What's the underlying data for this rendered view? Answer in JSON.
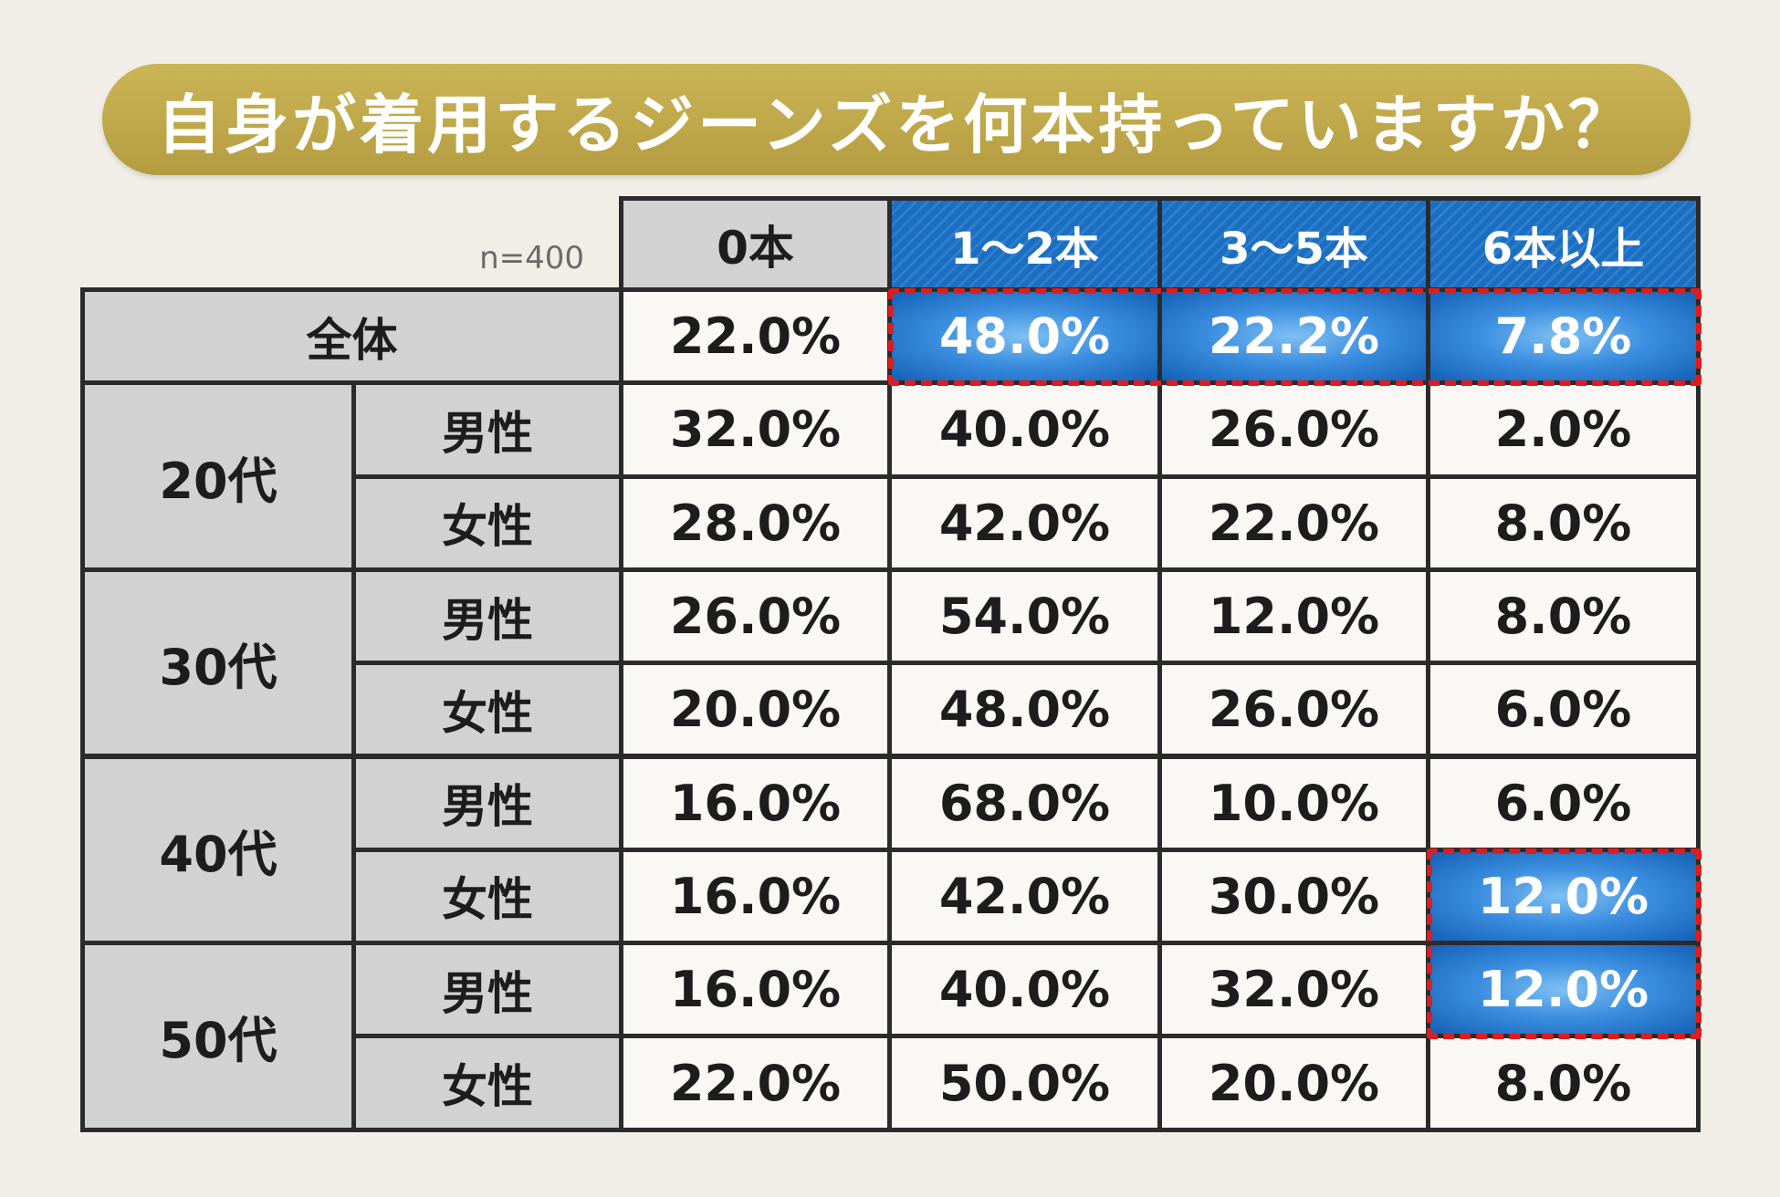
{
  "title": "自身が着用するジーンズを何本持っていますか？",
  "sample_label": "n=400",
  "chart_data": {
    "type": "table",
    "title": "自身が着用するジーンズを何本持っていますか？",
    "columns": [
      "0本",
      "1〜2本",
      "3〜5本",
      "6本以上"
    ],
    "rows": [
      {
        "group": "全体",
        "sub": "",
        "values": [
          "22.0%",
          "48.0%",
          "22.2%",
          "7.8%"
        ],
        "highlight": [
          false,
          true,
          true,
          true
        ]
      },
      {
        "group": "20代",
        "sub": "男性",
        "values": [
          "32.0%",
          "40.0%",
          "26.0%",
          "2.0%"
        ],
        "highlight": [
          false,
          false,
          false,
          false
        ]
      },
      {
        "group": "20代",
        "sub": "女性",
        "values": [
          "28.0%",
          "42.0%",
          "22.0%",
          "8.0%"
        ],
        "highlight": [
          false,
          false,
          false,
          false
        ]
      },
      {
        "group": "30代",
        "sub": "男性",
        "values": [
          "26.0%",
          "54.0%",
          "12.0%",
          "8.0%"
        ],
        "highlight": [
          false,
          false,
          false,
          false
        ]
      },
      {
        "group": "30代",
        "sub": "女性",
        "values": [
          "20.0%",
          "48.0%",
          "26.0%",
          "6.0%"
        ],
        "highlight": [
          false,
          false,
          false,
          false
        ]
      },
      {
        "group": "40代",
        "sub": "男性",
        "values": [
          "16.0%",
          "68.0%",
          "10.0%",
          "6.0%"
        ],
        "highlight": [
          false,
          false,
          false,
          false
        ]
      },
      {
        "group": "40代",
        "sub": "女性",
        "values": [
          "16.0%",
          "42.0%",
          "30.0%",
          "12.0%"
        ],
        "highlight": [
          false,
          false,
          false,
          true
        ]
      },
      {
        "group": "50代",
        "sub": "男性",
        "values": [
          "16.0%",
          "40.0%",
          "32.0%",
          "12.0%"
        ],
        "highlight": [
          false,
          false,
          false,
          true
        ]
      },
      {
        "group": "50代",
        "sub": "女性",
        "values": [
          "22.0%",
          "50.0%",
          "20.0%",
          "8.0%"
        ],
        "highlight": [
          false,
          false,
          false,
          false
        ]
      }
    ],
    "header_style": {
      "0本": "gray",
      "1〜2本": "blue",
      "3〜5本": "blue",
      "6本以上": "blue"
    },
    "colors": {
      "background": "#f1ede7",
      "banner": "#c2ab4c",
      "header_gray": "#d2d2d2",
      "header_blue": "#1a6fc4",
      "highlight_blue": "#3c8fe0",
      "highlight_border": "#e01c1c",
      "cell": "#faf8f4",
      "grid": "#2b2b2b"
    }
  }
}
